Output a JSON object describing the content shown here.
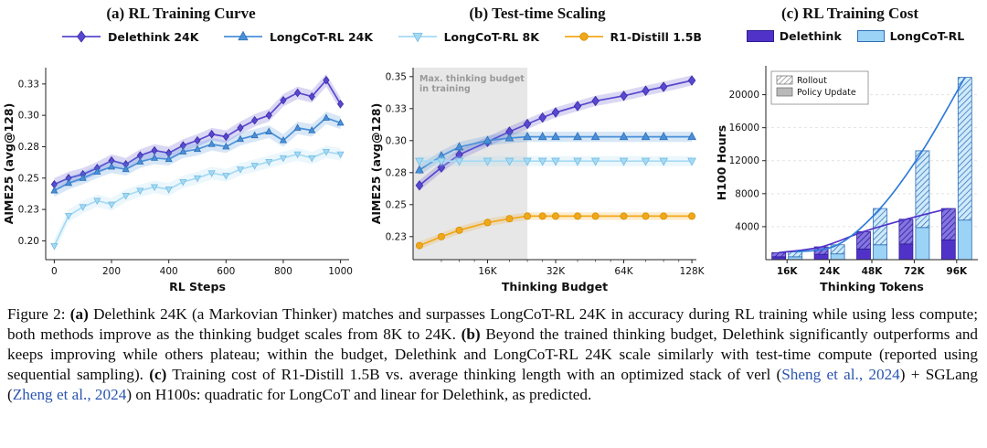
{
  "chart_data": [
    {
      "type": "line",
      "title": "(a) RL Training Curve",
      "xlabel": "RL Steps",
      "ylabel": "AIME25 (avg@128)",
      "xlim": [
        -30,
        1030
      ],
      "ylim": [
        0.185,
        0.338
      ],
      "xticks": [
        0,
        200,
        400,
        600,
        800,
        1000
      ],
      "xtick_labels": [
        "0",
        "200",
        "400",
        "600",
        "800",
        "1000"
      ],
      "yticks": [
        0.2,
        0.225,
        0.25,
        0.275,
        0.3,
        0.325
      ],
      "ytick_labels": [
        "0.20",
        "0.23",
        "0.25",
        "0.28",
        "0.30",
        "0.33"
      ],
      "grid": false,
      "x": [
        0,
        50,
        100,
        150,
        200,
        250,
        300,
        350,
        400,
        450,
        500,
        550,
        600,
        650,
        700,
        750,
        800,
        850,
        900,
        950,
        1000
      ],
      "series": [
        {
          "name": "Delethink 24K",
          "marker": "diamond",
          "color": "#5848cf",
          "edge": "#3b2ba8",
          "band": 0.005,
          "values": [
            0.245,
            0.25,
            0.253,
            0.258,
            0.264,
            0.261,
            0.268,
            0.272,
            0.27,
            0.276,
            0.28,
            0.285,
            0.283,
            0.29,
            0.296,
            0.3,
            0.312,
            0.318,
            0.315,
            0.328,
            0.309
          ]
        },
        {
          "name": "LongCoT-RL 24K",
          "marker": "triangle-up",
          "color": "#4a90d9",
          "edge": "#2f6fb4",
          "band": 0.005,
          "values": [
            0.24,
            0.246,
            0.25,
            0.255,
            0.259,
            0.257,
            0.263,
            0.266,
            0.265,
            0.271,
            0.273,
            0.277,
            0.275,
            0.281,
            0.284,
            0.287,
            0.28,
            0.29,
            0.288,
            0.298,
            0.294
          ]
        },
        {
          "name": "LongCoT-RL 8K",
          "marker": "triangle-down",
          "color": "#a6daf3",
          "edge": "#74bce4",
          "band": 0.005,
          "values": [
            0.196,
            0.22,
            0.227,
            0.232,
            0.229,
            0.236,
            0.24,
            0.243,
            0.241,
            0.247,
            0.25,
            0.254,
            0.252,
            0.257,
            0.26,
            0.263,
            0.266,
            0.269,
            0.266,
            0.271,
            0.269
          ]
        }
      ]
    },
    {
      "type": "line",
      "title": "(b) Test-time Scaling",
      "xlabel": "Thinking Budget",
      "ylabel": "AIME25 (avg@128)",
      "xscale": "log",
      "xlim": [
        7.5,
        134
      ],
      "ylim": [
        0.207,
        0.357
      ],
      "xticks": [
        16,
        32,
        64,
        128
      ],
      "xtick_labels": [
        "16K",
        "32K",
        "64K",
        "128K"
      ],
      "xminor": [
        10,
        12,
        14,
        20,
        24,
        28,
        40,
        48,
        56,
        80,
        96,
        112
      ],
      "yticks": [
        0.225,
        0.25,
        0.275,
        0.3,
        0.325,
        0.35
      ],
      "ytick_labels": [
        "0.23",
        "0.25",
        "0.28",
        "0.30",
        "0.33",
        "0.35"
      ],
      "grid": false,
      "shaded_region": {
        "x0": 7.5,
        "x1": 24,
        "color": "#e7e7e7",
        "label_lines": [
          "Max. thinking budget",
          "in training"
        ]
      },
      "x": [
        8,
        10,
        12,
        16,
        20,
        24,
        28,
        32,
        40,
        48,
        64,
        80,
        96,
        128
      ],
      "series": [
        {
          "name": "Delethink 24K",
          "marker": "diamond",
          "color": "#5848cf",
          "edge": "#3b2ba8",
          "band": 0.004,
          "values": [
            0.265,
            0.279,
            0.289,
            0.299,
            0.307,
            0.313,
            0.318,
            0.322,
            0.327,
            0.331,
            0.335,
            0.339,
            0.342,
            0.347
          ]
        },
        {
          "name": "LongCoT-RL 24K",
          "marker": "triangle-up",
          "color": "#4a90d9",
          "edge": "#2f6fb4",
          "band": 0.004,
          "values": [
            0.277,
            0.288,
            0.295,
            0.3,
            0.302,
            0.303,
            0.303,
            0.303,
            0.303,
            0.303,
            0.303,
            0.303,
            0.303,
            0.303
          ]
        },
        {
          "name": "LongCoT-RL 8K",
          "marker": "triangle-down",
          "color": "#a6daf3",
          "edge": "#74bce4",
          "band": 0.004,
          "values": [
            0.284,
            0.284,
            0.284,
            0.284,
            0.284,
            0.284,
            0.284,
            0.284,
            0.284,
            0.284,
            0.284,
            0.284,
            0.284,
            0.284
          ]
        },
        {
          "name": "R1-Distill 1.5B",
          "marker": "circle",
          "color": "#f2a71b",
          "edge": "#d18f00",
          "band": 0.003,
          "values": [
            0.218,
            0.225,
            0.23,
            0.236,
            0.239,
            0.241,
            0.241,
            0.241,
            0.241,
            0.241,
            0.241,
            0.241,
            0.241,
            0.241
          ]
        }
      ]
    },
    {
      "type": "bar",
      "title": "(c) RL Training Cost",
      "xlabel": "Thinking Tokens",
      "ylabel": "H100 Hours",
      "categories": [
        "16K",
        "24K",
        "48K",
        "72K",
        "96K"
      ],
      "ylim": [
        0,
        23500
      ],
      "yticks": [
        4000,
        8000,
        12000,
        16000,
        20000
      ],
      "ytick_labels": [
        "4000",
        "8000",
        "12000",
        "16000",
        "20000"
      ],
      "grid": true,
      "inner_legend": [
        "Rollout",
        "Policy Update"
      ],
      "series": [
        {
          "name": "Delethink",
          "color": "#5132c9",
          "edge": "#2d1d96",
          "hatch_bg": "#8575e2",
          "hatch_line": "#2d1d96",
          "trend": "linear",
          "policy": [
            350,
            650,
            1300,
            1900,
            2400
          ],
          "rollout": [
            500,
            900,
            2100,
            3000,
            3800
          ]
        },
        {
          "name": "LongCoT-RL",
          "color": "#9bd3f7",
          "edge": "#2f6fb4",
          "hatch_bg": "#cfeafc",
          "hatch_line": "#3a77b8",
          "trend": "quadratic",
          "policy": [
            350,
            700,
            1800,
            3900,
            4800
          ],
          "rollout": [
            600,
            1100,
            4400,
            9300,
            17300
          ]
        }
      ],
      "trend_colors": {
        "Delethink": "#5132c9",
        "LongCoT-RL": "#2f7bd9"
      }
    }
  ],
  "caption": {
    "link_color": "#2b55b0",
    "segments": [
      {
        "text": "Figure 2: ",
        "style": "normal"
      },
      {
        "text": "(a)",
        "style": "bold"
      },
      {
        "text": " Delethink 24K (a Markovian Thinker) matches and surpasses LongCoT-RL 24K in accuracy during RL training while using less compute; both methods improve as the thinking budget scales from 8K to 24K. ",
        "style": "normal"
      },
      {
        "text": "(b)",
        "style": "bold"
      },
      {
        "text": " Beyond the trained thinking budget, Delethink significantly outperforms and keeps improving while others plateau; within the budget, Delethink and LongCoT-RL 24K scale similarly with test-time compute (reported using sequential sampling). ",
        "style": "normal"
      },
      {
        "text": "(c)",
        "style": "bold"
      },
      {
        "text": " Training cost of R1-Distill 1.5B vs. average thinking length with an optimized stack of verl (",
        "style": "normal"
      },
      {
        "text": "Sheng et al., 2024",
        "style": "link"
      },
      {
        "text": ") + SGLang (",
        "style": "normal"
      },
      {
        "text": "Zheng et al., 2024",
        "style": "link"
      },
      {
        "text": ") on H100s: quadratic for LongCoT and linear for Delethink, as predicted.",
        "style": "normal"
      }
    ]
  }
}
